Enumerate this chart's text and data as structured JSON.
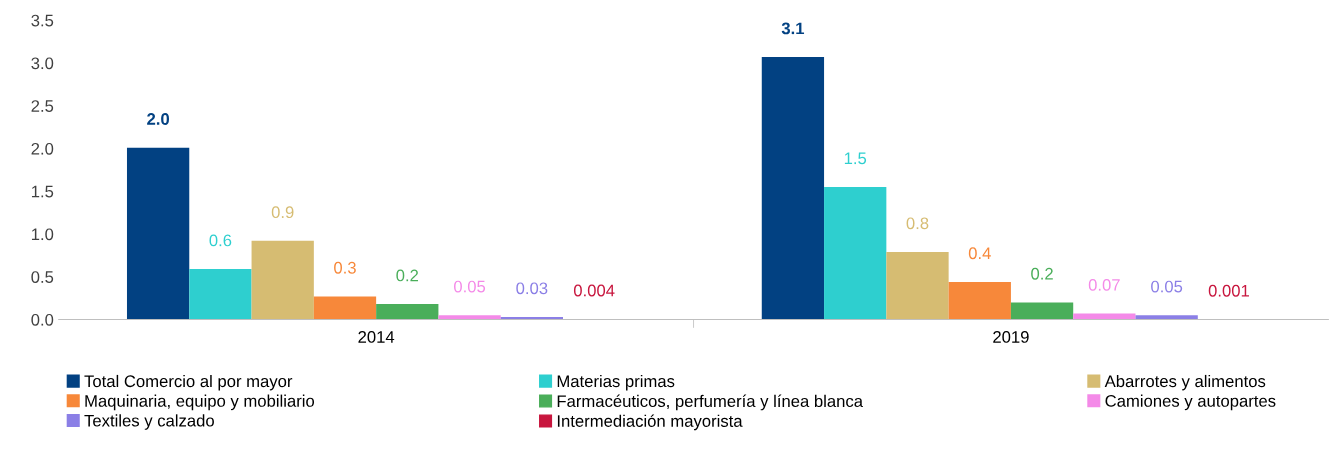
{
  "chart_data": {
    "type": "bar",
    "categories": [
      "2014",
      "2019"
    ],
    "series": [
      {
        "name": "Total Comercio al por mayor",
        "color": "#024182",
        "values": [
          2.01,
          3.07
        ],
        "value_labels": [
          "2.0",
          "3.1"
        ]
      },
      {
        "name": "Materias primas",
        "color": "#2ecfcf",
        "values": [
          0.59,
          1.55
        ],
        "value_labels": [
          "0.6",
          "1.5"
        ]
      },
      {
        "name": "Abarrotes y alimentos",
        "color": "#d6bc72",
        "values": [
          0.92,
          0.79
        ],
        "value_labels": [
          "0.9",
          "0.8"
        ]
      },
      {
        "name": "Maquinaria, equipo y mobiliario",
        "color": "#f7883a",
        "values": [
          0.27,
          0.44
        ],
        "value_labels": [
          "0.3",
          "0.4"
        ]
      },
      {
        "name": "Farmacéuticos, perfumería y línea blanca",
        "color": "#4aae5a",
        "values": [
          0.18,
          0.2
        ],
        "value_labels": [
          "0.2",
          "0.2"
        ]
      },
      {
        "name": "Camiones y autopartes",
        "color": "#f48ae8",
        "values": [
          0.05,
          0.07
        ],
        "value_labels": [
          "0.05",
          "0.07"
        ]
      },
      {
        "name": "Textiles y calzado",
        "color": "#8b7fe6",
        "values": [
          0.03,
          0.05
        ],
        "value_labels": [
          "0.03",
          "0.05"
        ]
      },
      {
        "name": "Intermediación mayorista",
        "color": "#c8163e",
        "values": [
          0.004,
          0.001
        ],
        "value_labels": [
          "0.004",
          "0.001"
        ]
      }
    ],
    "ylim": [
      0,
      3.5
    ],
    "yticks": [
      {
        "value": 0,
        "label": "0.0"
      },
      {
        "value": 0.5,
        "label": "0.5"
      },
      {
        "value": 1,
        "label": "1.0"
      },
      {
        "value": 1.5,
        "label": "1.5"
      },
      {
        "value": 2,
        "label": "2.0"
      },
      {
        "value": 2.5,
        "label": "2.5"
      },
      {
        "value": 3,
        "label": "3.0"
      },
      {
        "value": 3.5,
        "label": "3.5"
      }
    ],
    "grid": false,
    "legend": "bottom"
  }
}
